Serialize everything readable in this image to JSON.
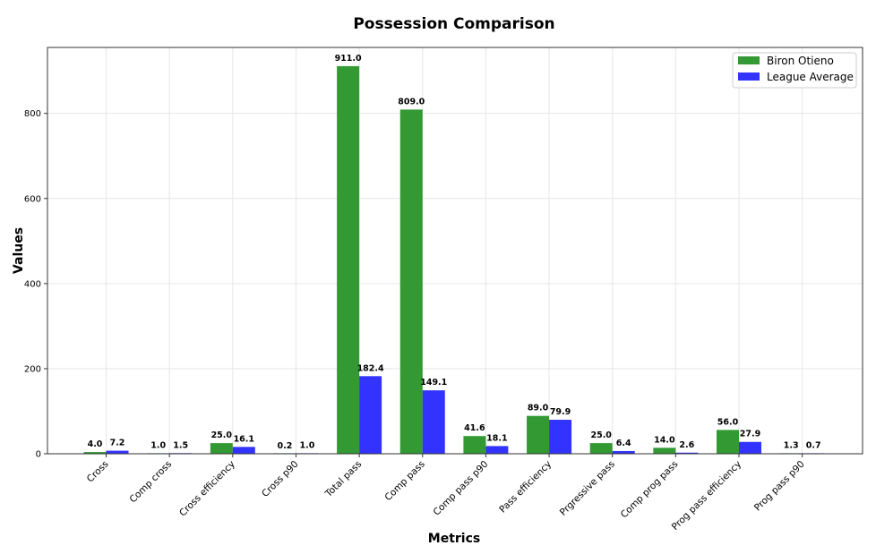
{
  "chart_data": {
    "type": "bar",
    "title": "Possession Comparison",
    "xlabel": "Metrics",
    "ylabel": "Values",
    "ylim": [
      0,
      955
    ],
    "yticks": [
      0,
      200,
      400,
      600,
      800
    ],
    "grid": true,
    "legend_position": "top-right",
    "categories": [
      "Cross",
      "Comp cross",
      "Cross efficiency",
      "Cross p90",
      "Total pass",
      "Comp pass",
      "Comp pass p90",
      "Pass efficiency",
      "Prgressive pass",
      "Comp prog pass",
      "Prog pass efficiency",
      "Prog pass p90"
    ],
    "series": [
      {
        "name": "Biron Otieno",
        "color": "#339933",
        "values": [
          4.0,
          1.0,
          25.0,
          0.2,
          911.0,
          809.0,
          41.6,
          89.0,
          25.0,
          14.0,
          56.0,
          1.3
        ]
      },
      {
        "name": "League Average",
        "color": "#3333ff",
        "values": [
          7.2,
          1.5,
          16.1,
          1.0,
          182.4,
          149.1,
          18.1,
          79.9,
          6.4,
          2.6,
          27.9,
          0.7
        ]
      }
    ]
  }
}
